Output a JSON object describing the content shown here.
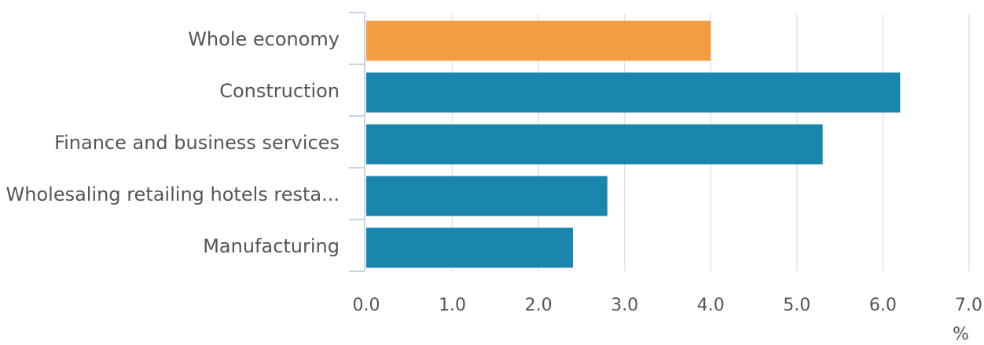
{
  "chart_data": {
    "type": "bar",
    "orientation": "horizontal",
    "categories": [
      "Whole economy",
      "Construction",
      "Finance and business services",
      "Wholesaling retailing hotels resta...",
      "Manufacturing"
    ],
    "values": [
      4.0,
      6.2,
      5.3,
      2.8,
      2.4
    ],
    "bar_colors": [
      "#f39c40",
      "#1b86ad",
      "#1b86ad",
      "#1b86ad",
      "#1b86ad"
    ],
    "xlim": [
      0,
      7
    ],
    "xticks": [
      "0.0",
      "1.0",
      "2.0",
      "3.0",
      "4.0",
      "5.0",
      "6.0",
      "7.0"
    ],
    "xlabel": "%",
    "grid": "vertical",
    "axis_color": "#c9d3e8",
    "grid_color": "#e3e3e3",
    "text_color": "#555555"
  }
}
